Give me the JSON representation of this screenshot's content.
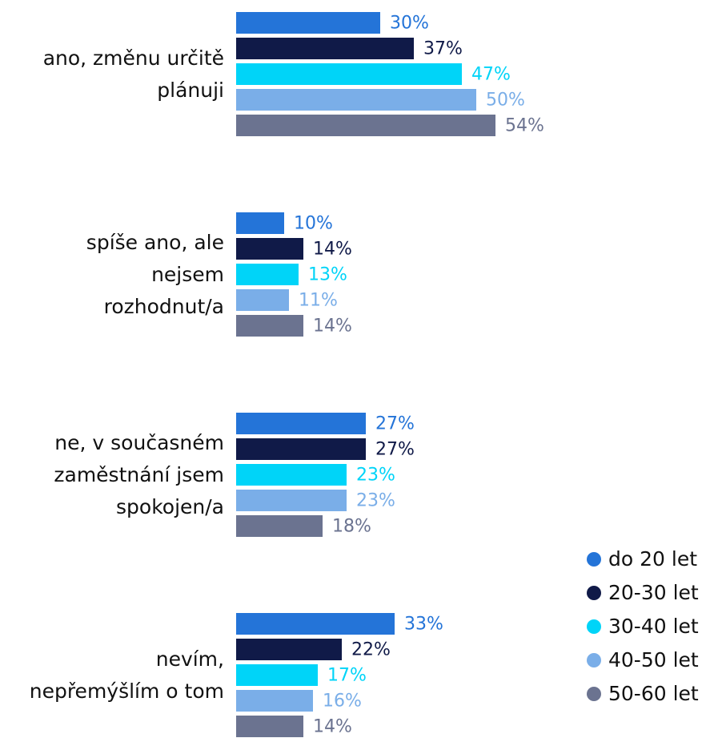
{
  "chart_data": {
    "type": "bar",
    "orientation": "horizontal",
    "categories": [
      "ano, změnu určitě\nplánuji",
      "spíše ano, ale\nnejsem\nrozhodnut/a",
      "ne, v současném\nzaměstnání jsem\nspokojen/a",
      "nevím,\nnepřemýšlím o tom"
    ],
    "series": [
      {
        "name": "do 20 let",
        "color": "#2474d8",
        "values": [
          30,
          10,
          27,
          33
        ],
        "value_labels": [
          "30%",
          "10%",
          "27%",
          "33%"
        ]
      },
      {
        "name": "20-30 let",
        "color": "#101a48",
        "values": [
          37,
          14,
          27,
          22
        ],
        "value_labels": [
          "37%",
          "14%",
          "27%",
          "22%"
        ]
      },
      {
        "name": "30-40 let",
        "color": "#00d4f8",
        "values": [
          47,
          13,
          23,
          17
        ],
        "value_labels": [
          "47%",
          "13%",
          "23%",
          "17%"
        ]
      },
      {
        "name": "40-50 let",
        "color": "#7aaee8",
        "values": [
          50,
          11,
          23,
          16
        ],
        "value_labels": [
          "50%",
          "11%",
          "23%",
          "16%"
        ]
      },
      {
        "name": "50-60 let",
        "color": "#6b7390",
        "values": [
          54,
          14,
          18,
          14
        ],
        "value_labels": [
          "54%",
          "14%",
          "18%",
          "14%"
        ]
      }
    ],
    "legend": "bottom-right"
  }
}
